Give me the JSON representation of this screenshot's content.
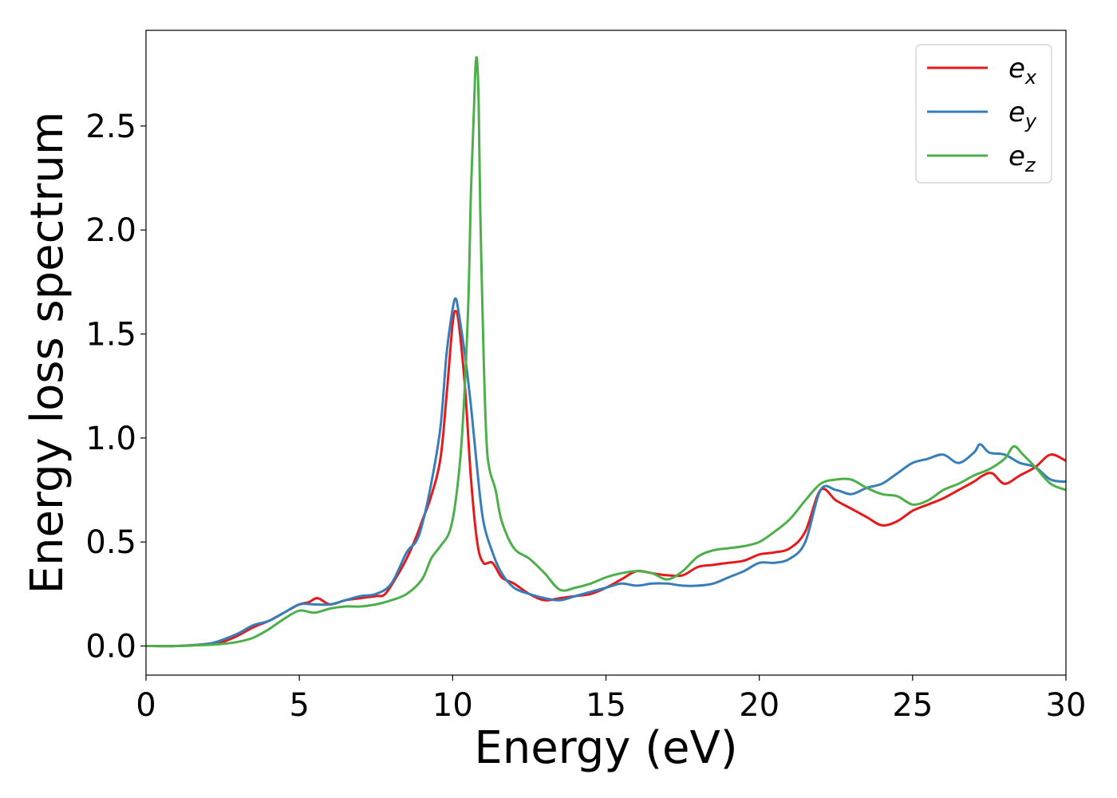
{
  "chart_data": {
    "type": "line",
    "title": "",
    "xlabel": "Energy (eV)",
    "ylabel": "Energy loss spectrum",
    "xlim": [
      0,
      30
    ],
    "ylim": [
      -0.14,
      2.96
    ],
    "xticks": [
      0,
      5,
      10,
      15,
      20,
      25,
      30
    ],
    "xtick_labels": [
      "0",
      "5",
      "10",
      "15",
      "20",
      "25",
      "30"
    ],
    "yticks": [
      0.0,
      0.5,
      1.0,
      1.5,
      2.0,
      2.5
    ],
    "ytick_labels": [
      "0.0",
      "0.5",
      "1.0",
      "1.5",
      "2.0",
      "2.5"
    ],
    "grid": false,
    "legend_position": "top-right",
    "series": [
      {
        "name": "e",
        "subscript": "x",
        "color": "#e41a1c",
        "x": [
          0,
          1,
          2,
          2.5,
          3,
          3.5,
          4,
          4.5,
          5,
          5.3,
          5.6,
          6,
          6.5,
          7,
          7.5,
          7.8,
          8.2,
          8.5,
          8.8,
          9,
          9.3,
          9.6,
          9.8,
          10,
          10.1,
          10.2,
          10.4,
          10.6,
          10.8,
          11,
          11.3,
          11.6,
          12,
          12.5,
          13,
          13.5,
          14,
          14.5,
          15,
          15.5,
          16,
          16.5,
          17,
          17.5,
          18,
          18.5,
          19,
          19.5,
          20,
          20.5,
          21,
          21.5,
          22,
          22.5,
          23,
          23.5,
          24,
          24.5,
          25,
          25.5,
          26,
          26.5,
          27,
          27.3,
          27.6,
          28,
          28.5,
          29,
          29.5,
          30
        ],
        "y": [
          0.0,
          0.0,
          0.01,
          0.02,
          0.05,
          0.09,
          0.12,
          0.16,
          0.2,
          0.21,
          0.23,
          0.2,
          0.22,
          0.23,
          0.24,
          0.25,
          0.34,
          0.42,
          0.52,
          0.6,
          0.72,
          0.9,
          1.2,
          1.55,
          1.61,
          1.55,
          1.25,
          0.8,
          0.5,
          0.4,
          0.4,
          0.33,
          0.3,
          0.25,
          0.22,
          0.23,
          0.24,
          0.25,
          0.28,
          0.32,
          0.36,
          0.35,
          0.34,
          0.34,
          0.38,
          0.39,
          0.4,
          0.41,
          0.44,
          0.45,
          0.47,
          0.55,
          0.75,
          0.7,
          0.66,
          0.62,
          0.58,
          0.6,
          0.65,
          0.68,
          0.71,
          0.75,
          0.79,
          0.82,
          0.83,
          0.78,
          0.82,
          0.86,
          0.92,
          0.89
        ]
      },
      {
        "name": "e",
        "subscript": "y",
        "color": "#377eb8",
        "x": [
          0,
          1,
          2,
          2.5,
          3,
          3.5,
          4,
          4.5,
          5,
          5.5,
          6,
          6.5,
          7,
          7.5,
          8,
          8.5,
          8.8,
          9,
          9.3,
          9.6,
          9.8,
          10,
          10.1,
          10.2,
          10.4,
          10.6,
          10.8,
          11,
          11.3,
          11.6,
          12,
          12.5,
          13,
          13.5,
          14,
          14.5,
          15,
          15.5,
          16,
          16.5,
          17,
          17.5,
          18,
          18.5,
          19,
          19.5,
          20,
          20.5,
          21,
          21.5,
          22,
          22.5,
          23,
          23.5,
          24,
          24.5,
          25,
          25.5,
          26,
          26.5,
          27,
          27.2,
          27.5,
          28,
          28.5,
          29,
          29.5,
          30
        ],
        "y": [
          0.0,
          0.0,
          0.01,
          0.03,
          0.06,
          0.1,
          0.12,
          0.16,
          0.2,
          0.2,
          0.2,
          0.22,
          0.24,
          0.25,
          0.3,
          0.45,
          0.5,
          0.58,
          0.78,
          1.05,
          1.4,
          1.62,
          1.67,
          1.6,
          1.4,
          1.15,
          0.85,
          0.6,
          0.45,
          0.35,
          0.28,
          0.25,
          0.23,
          0.22,
          0.24,
          0.26,
          0.28,
          0.3,
          0.29,
          0.3,
          0.3,
          0.29,
          0.29,
          0.3,
          0.33,
          0.36,
          0.4,
          0.4,
          0.42,
          0.5,
          0.75,
          0.75,
          0.73,
          0.76,
          0.78,
          0.83,
          0.88,
          0.9,
          0.92,
          0.88,
          0.93,
          0.97,
          0.93,
          0.92,
          0.88,
          0.86,
          0.8,
          0.79
        ]
      },
      {
        "name": "e",
        "subscript": "z",
        "color": "#4daf4a",
        "x": [
          0,
          1,
          2,
          2.5,
          3,
          3.5,
          4,
          4.5,
          5,
          5.5,
          6,
          6.5,
          7,
          7.5,
          8,
          8.5,
          9,
          9.3,
          9.6,
          9.9,
          10.1,
          10.3,
          10.5,
          10.6,
          10.7,
          10.75,
          10.8,
          10.85,
          10.9,
          11,
          11.1,
          11.2,
          11.4,
          11.6,
          12,
          12.5,
          13,
          13.5,
          14,
          14.5,
          15,
          15.5,
          16,
          16.5,
          17,
          17.5,
          18,
          18.5,
          19,
          19.5,
          20,
          20.5,
          21,
          21.5,
          22,
          22.5,
          23,
          23.5,
          24,
          24.5,
          25,
          25.5,
          26,
          26.5,
          27,
          27.5,
          28,
          28.3,
          28.6,
          29,
          29.5,
          30
        ],
        "y": [
          0.0,
          0.0,
          0.005,
          0.01,
          0.02,
          0.04,
          0.08,
          0.13,
          0.17,
          0.16,
          0.18,
          0.19,
          0.19,
          0.2,
          0.22,
          0.25,
          0.32,
          0.42,
          0.48,
          0.55,
          0.7,
          1.0,
          1.6,
          2.2,
          2.6,
          2.8,
          2.81,
          2.6,
          2.1,
          1.45,
          1.0,
          0.85,
          0.75,
          0.6,
          0.47,
          0.42,
          0.35,
          0.27,
          0.28,
          0.3,
          0.33,
          0.35,
          0.36,
          0.35,
          0.32,
          0.36,
          0.43,
          0.46,
          0.47,
          0.48,
          0.5,
          0.55,
          0.61,
          0.7,
          0.78,
          0.8,
          0.8,
          0.76,
          0.73,
          0.72,
          0.68,
          0.7,
          0.75,
          0.78,
          0.82,
          0.85,
          0.9,
          0.96,
          0.92,
          0.86,
          0.78,
          0.75
        ]
      }
    ]
  }
}
